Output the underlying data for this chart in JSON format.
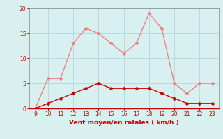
{
  "hours": [
    9,
    10,
    11,
    12,
    13,
    14,
    15,
    16,
    17,
    18,
    19,
    20,
    21,
    22,
    23
  ],
  "rafales": [
    0,
    6,
    6,
    13,
    16,
    15,
    13,
    11,
    13,
    19,
    16,
    5,
    3,
    5,
    5
  ],
  "moyen": [
    0,
    1,
    2,
    3,
    4,
    5,
    4,
    4,
    4,
    4,
    3,
    2,
    1,
    1,
    1
  ],
  "rafales_color": "#f08080",
  "moyen_color": "#cc0000",
  "background_color": "#d8f0f0",
  "grid_color": "#b8dada",
  "xlabel": "Vent moyen/en rafales ( km/h )",
  "xlabel_color": "#cc0000",
  "tick_color": "#cc0000",
  "axis_color": "#888888",
  "ylim": [
    0,
    20
  ],
  "yticks": [
    0,
    5,
    10,
    15,
    20
  ],
  "xlim": [
    9,
    23
  ]
}
